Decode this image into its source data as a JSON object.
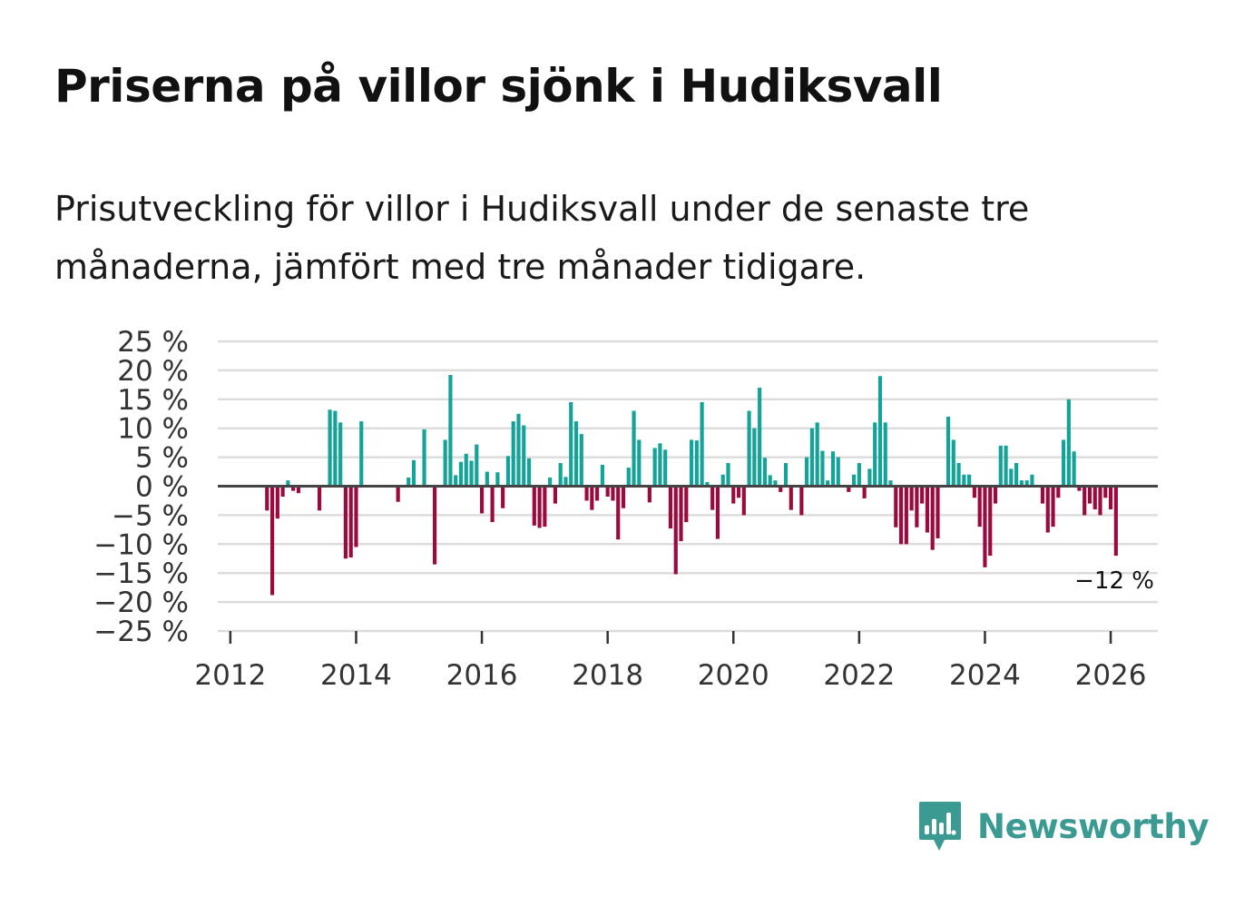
{
  "title": "Priserna på villor sjönk i Hudiksvall",
  "subtitle": "Prisutveckling för villor i Hudiksvall under de senaste tre månaderna, jämfört med tre månader tidigare.",
  "brand": {
    "name": "Newsworthy",
    "icon": "bar-chart-speech-bubble-icon"
  },
  "colors": {
    "positive": "#13a398",
    "negative": "#9b0a3e",
    "grid": "#dcdcdc",
    "zero": "#444444",
    "brand": "#3b9a92"
  },
  "chart_data": {
    "type": "bar",
    "title": "Priserna på villor sjönk i Hudiksvall",
    "ylabel": "",
    "xlabel": "",
    "ylim": [
      -25,
      25
    ],
    "y_ticks": [
      25,
      20,
      15,
      10,
      5,
      0,
      -5,
      -10,
      -15,
      -20,
      -25
    ],
    "y_tick_labels": [
      "25 %",
      "20 %",
      "15 %",
      "10 %",
      "5 %",
      "0 %",
      "−5 %",
      "−10 %",
      "−15 %",
      "−20 %",
      "−25 %"
    ],
    "x_ticks": [
      2012,
      2014,
      2016,
      2018,
      2020,
      2022,
      2024,
      2026
    ],
    "x_tick_labels": [
      "2012",
      "2014",
      "2016",
      "2018",
      "2020",
      "2022",
      "2024",
      "2026"
    ],
    "x_range": [
      2011.8,
      2026.7
    ],
    "start": {
      "year": 2012,
      "month": 8
    },
    "unit": "month",
    "values": [
      -4.2,
      -18.8,
      -5.6,
      -1.8,
      1.0,
      -0.8,
      -1.2,
      null,
      null,
      null,
      -4.2,
      null,
      13.2,
      13.0,
      11.0,
      -12.5,
      -12.3,
      -10.5,
      11.2,
      null,
      null,
      null,
      null,
      null,
      null,
      -2.7,
      null,
      1.5,
      4.5,
      null,
      9.8,
      null,
      -13.5,
      null,
      8.0,
      19.2,
      1.9,
      4.2,
      5.6,
      4.4,
      7.2,
      -4.7,
      2.5,
      -6.2,
      2.4,
      -3.8,
      5.2,
      11.2,
      12.5,
      10.5,
      4.8,
      -6.8,
      -7.2,
      -7.0,
      1.5,
      -3.0,
      4.0,
      1.6,
      14.5,
      11.2,
      9.0,
      -2.5,
      -4.1,
      -2.5,
      3.7,
      -1.8,
      -2.5,
      -9.2,
      -3.8,
      3.2,
      13.0,
      8.0,
      null,
      -2.8,
      6.6,
      7.4,
      6.3,
      -7.3,
      -15.2,
      -9.5,
      -6.2,
      8.0,
      7.9,
      14.5,
      0.7,
      -4.1,
      -9.1,
      2.0,
      4.0,
      -3.0,
      -2.0,
      -5.0,
      13.0,
      10.0,
      17.0,
      4.9,
      1.9,
      1.0,
      -1.0,
      4.0,
      -4.1,
      null,
      -5.0,
      5.0,
      10.0,
      11.0,
      6.1,
      1.0,
      6.0,
      5.0,
      null,
      -1.0,
      2.0,
      4.0,
      -2.1,
      3.0,
      11.0,
      19.0,
      11.0,
      1.0,
      -7.1,
      -10.0,
      -10.0,
      -4.2,
      -7.1,
      -3.0,
      -8.0,
      -11.0,
      -9.0,
      null,
      12.0,
      8.0,
      4.0,
      2.0,
      2.0,
      -2.0,
      -7.0,
      -14.0,
      -12.0,
      -3.0,
      7.0,
      7.0,
      3.0,
      4.0,
      1.0,
      1.0,
      2.0,
      null,
      -3.0,
      -8.0,
      -7.0,
      -2.0,
      8.0,
      15.0,
      6.0,
      -0.8,
      -5.0,
      -3.0,
      -4.0,
      -5.0,
      -2.0,
      -4.0,
      -12.0
    ],
    "last_value_label": "−12 %"
  }
}
